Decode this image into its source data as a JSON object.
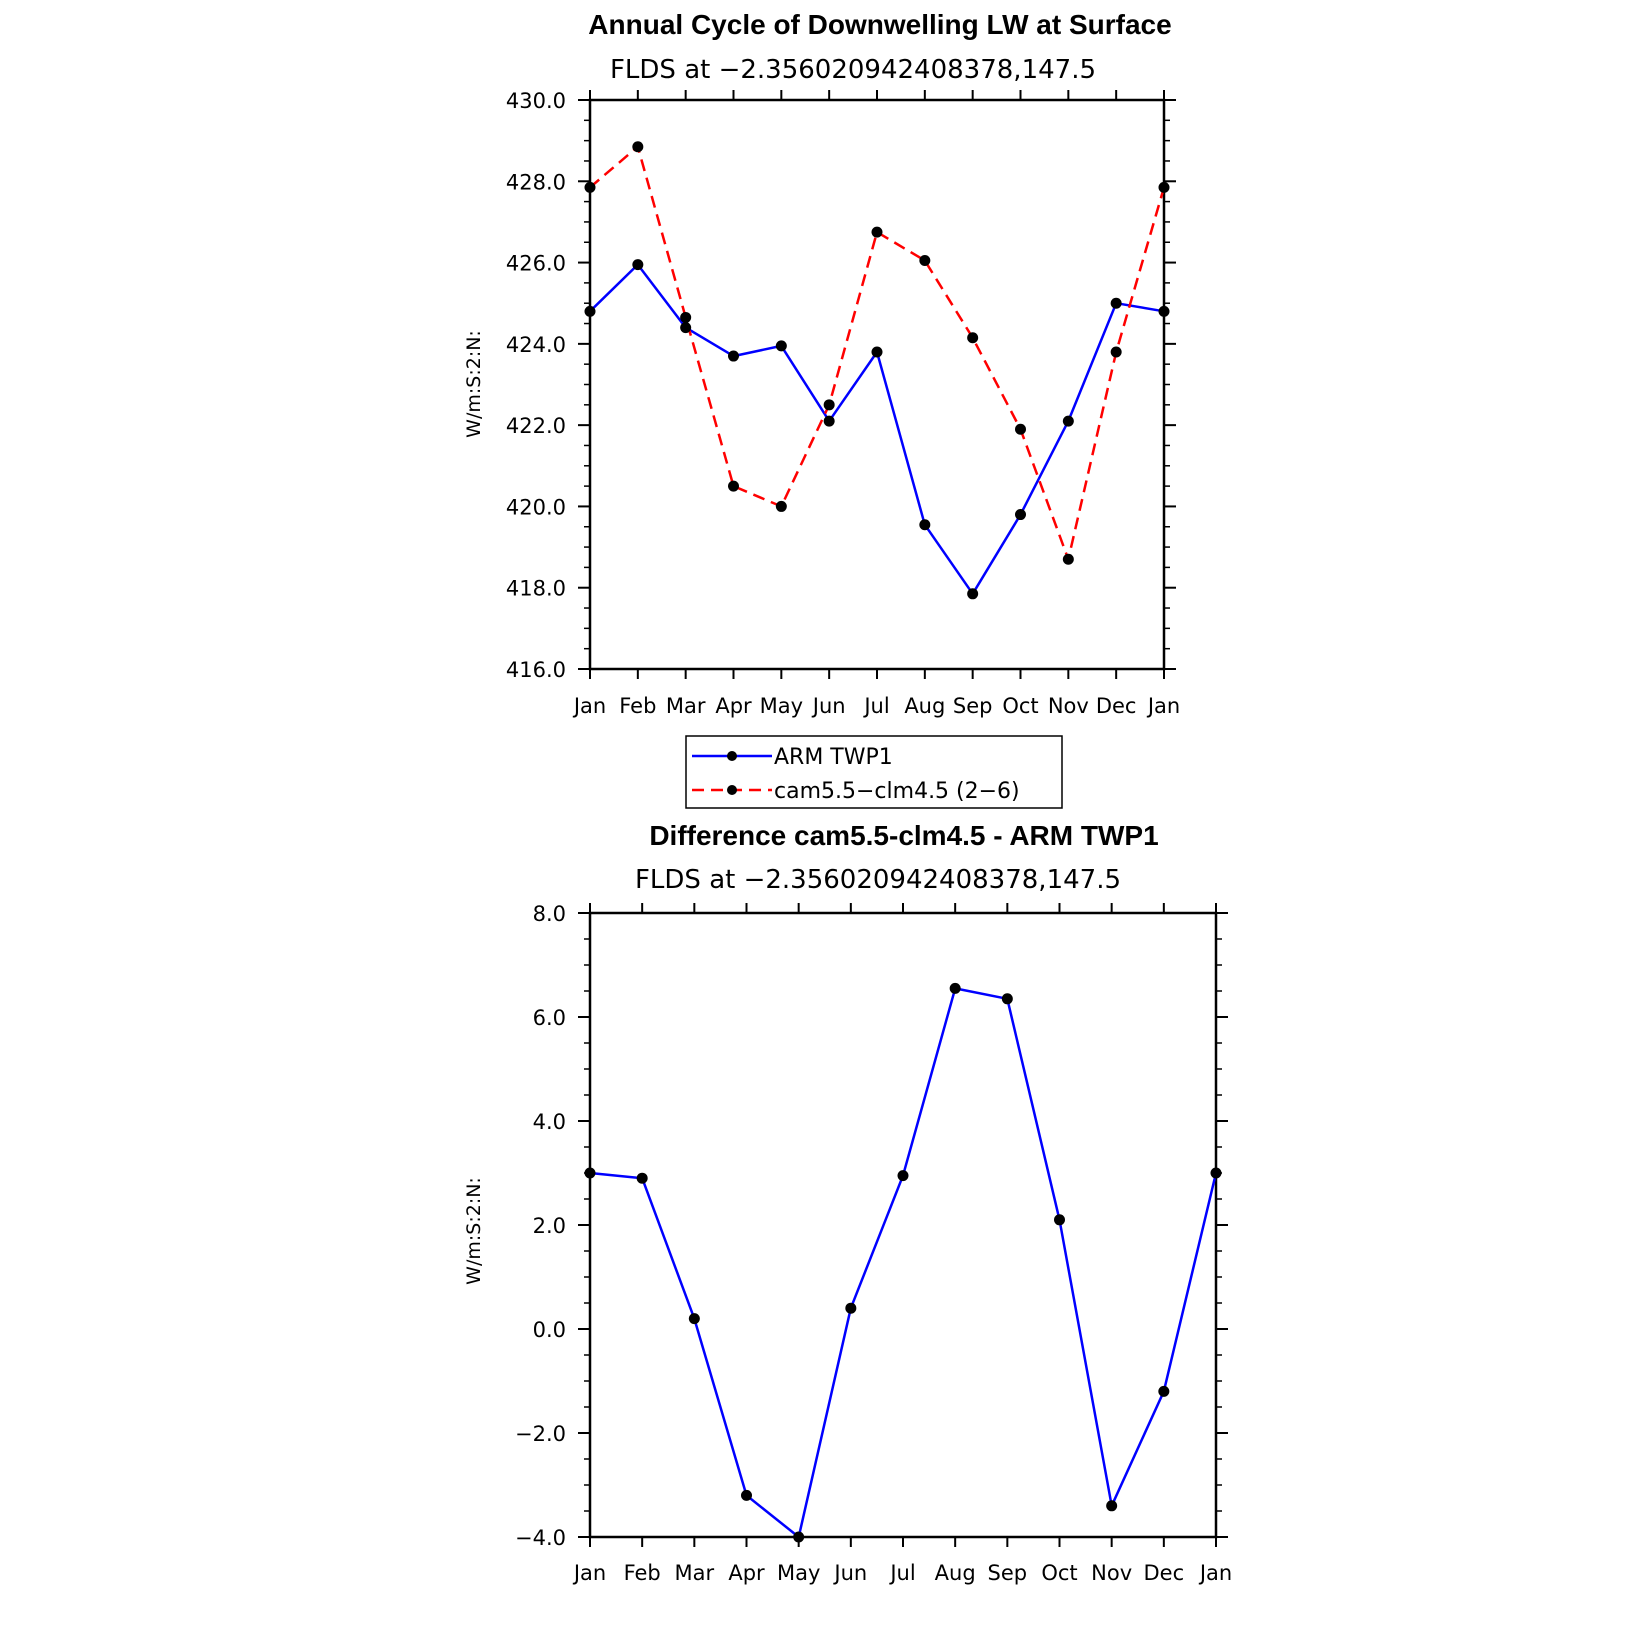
{
  "chart_data": [
    {
      "type": "line",
      "title": "Annual Cycle of Downwelling LW at Surface",
      "subtitle": "FLDS at −2.356020942408378,147.5",
      "ylabel": "W/m:S:2:N:",
      "categories": [
        "Jan",
        "Feb",
        "Mar",
        "Apr",
        "May",
        "Jun",
        "Jul",
        "Aug",
        "Sep",
        "Oct",
        "Nov",
        "Dec",
        "Jan"
      ],
      "ylim": [
        416.0,
        430.0
      ],
      "yticks": [
        "416.0",
        "418.0",
        "420.0",
        "422.0",
        "424.0",
        "426.0",
        "428.0",
        "430.0"
      ],
      "ytick_values": [
        416,
        418,
        420,
        422,
        424,
        426,
        428,
        430
      ],
      "series": [
        {
          "name": "ARM TWP1",
          "color": "#0000ff",
          "dash": "solid",
          "values": [
            424.8,
            425.95,
            424.4,
            423.7,
            423.95,
            422.1,
            423.8,
            419.55,
            417.85,
            419.8,
            422.1,
            425.0,
            424.8
          ]
        },
        {
          "name": "cam5.5−clm4.5 (2−6)",
          "color": "#ff0000",
          "dash": "dashed",
          "values": [
            427.85,
            428.85,
            424.65,
            420.5,
            420.0,
            422.5,
            426.75,
            426.05,
            424.15,
            421.9,
            418.7,
            423.8,
            427.85
          ]
        }
      ],
      "legend": "bottom"
    },
    {
      "type": "line",
      "title": "Difference cam5.5-clm4.5 - ARM TWP1",
      "subtitle": "FLDS at −2.356020942408378,147.5",
      "ylabel": "W/m:S:2:N:",
      "categories": [
        "Jan",
        "Feb",
        "Mar",
        "Apr",
        "May",
        "Jun",
        "Jul",
        "Aug",
        "Sep",
        "Oct",
        "Nov",
        "Dec",
        "Jan"
      ],
      "ylim": [
        -4.0,
        8.0
      ],
      "yticks": [
        "−4.0",
        "−2.0",
        "0.0",
        "2.0",
        "4.0",
        "6.0",
        "8.0"
      ],
      "ytick_values": [
        -4,
        -2,
        0,
        2,
        4,
        6,
        8
      ],
      "series": [
        {
          "color": "#0000ff",
          "dash": "solid",
          "values": [
            3.0,
            2.9,
            0.2,
            -3.2,
            -4.0,
            0.4,
            2.95,
            6.55,
            6.35,
            2.1,
            -3.4,
            -1.2,
            3.0
          ]
        }
      ]
    }
  ]
}
